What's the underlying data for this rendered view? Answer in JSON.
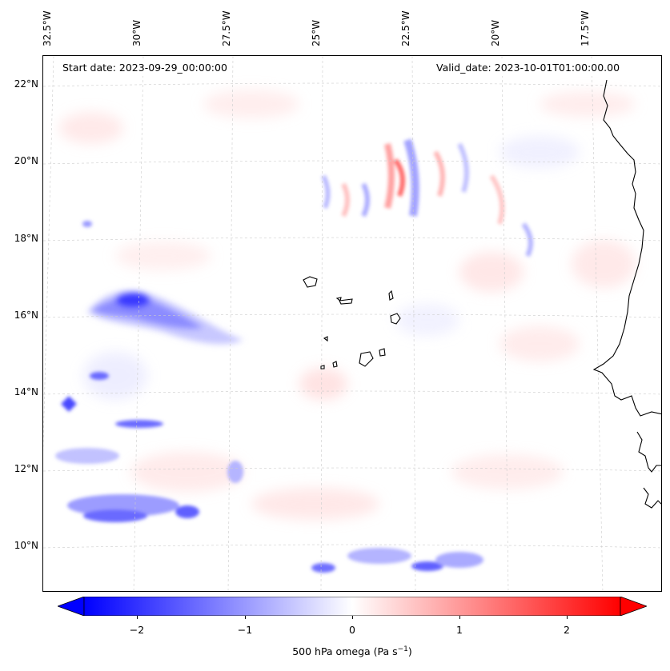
{
  "map": {
    "top_ticks": [
      "32.5°W",
      "30°W",
      "27.5°W",
      "25°W",
      "22.5°W",
      "20°W",
      "17.5°W"
    ],
    "left_ticks": [
      "22°N",
      "20°N",
      "18°N",
      "16°N",
      "14°N",
      "12°N",
      "10°N"
    ],
    "start_date": "Start date: 2023-09-29_00:00:00",
    "valid_date": "Valid_date: 2023-10-01T01:00:00.00",
    "colors": {
      "negative": "#0000ff",
      "positive": "#ff0000",
      "neutral": "#ffffff",
      "coast": "#000000"
    }
  },
  "colorbar": {
    "ticks": [
      "−2",
      "−1",
      "0",
      "1",
      "2"
    ],
    "label": "500 hPa omega (Pa s",
    "label_sup": "−1",
    "label_close": ")"
  }
}
